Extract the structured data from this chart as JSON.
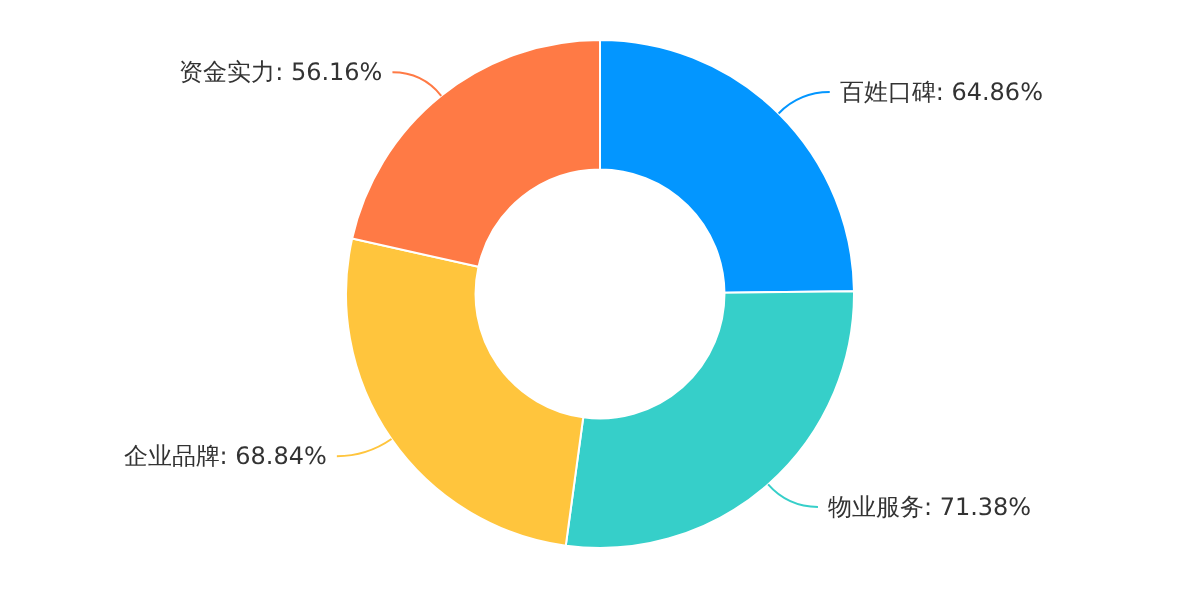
{
  "chart_data": {
    "type": "donut",
    "categories": [
      "百姓口碑",
      "物业服务",
      "企业品牌",
      "资金实力"
    ],
    "values": [
      64.86,
      71.38,
      68.84,
      56.16
    ],
    "value_labels": [
      "64.86%",
      "71.38%",
      "68.84%",
      "56.16%"
    ],
    "colors": [
      "#0396ff",
      "#36cfc9",
      "#ffc53d",
      "#ff7a45"
    ]
  }
}
